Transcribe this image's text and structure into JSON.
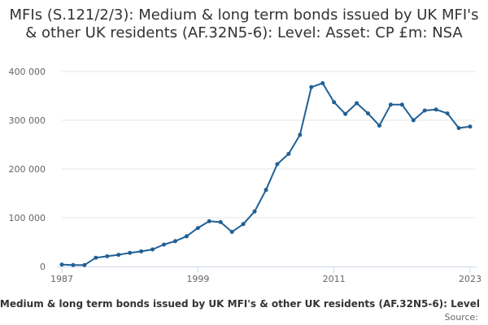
{
  "chart_data": {
    "type": "line",
    "title": "MFIs (S.121/2/3): Medium & long term bonds issued by UK MFI's & other UK residents (AF.32N5-6): Level: Asset: CP £m: NSA",
    "xlabel": "Medium & long term bonds issued by UK MFI's & other UK residents (AF.32N5-6): Level",
    "ylabel": "",
    "source": "Source:",
    "xlim": [
      1987,
      2023
    ],
    "ylim": [
      0,
      400000
    ],
    "x_ticks": [
      1987,
      1999,
      2011,
      2023
    ],
    "y_ticks": [
      0,
      100000,
      200000,
      300000,
      400000
    ],
    "y_tick_labels": [
      "0",
      "100 000",
      "200 000",
      "300 000",
      "400 000"
    ],
    "grid": true,
    "line_color": "#206095",
    "x": [
      1987,
      1988,
      1989,
      1990,
      1991,
      1992,
      1993,
      1994,
      1995,
      1996,
      1997,
      1998,
      1999,
      2000,
      2001,
      2002,
      2003,
      2004,
      2005,
      2006,
      2007,
      2008,
      2009,
      2010,
      2011,
      2012,
      2013,
      2014,
      2015,
      2016,
      2017,
      2018,
      2019,
      2020,
      2021,
      2022,
      2023
    ],
    "series": [
      {
        "values": [
          4000,
          3000,
          3000,
          18000,
          21000,
          24000,
          28000,
          31000,
          35000,
          45000,
          52000,
          62000,
          79000,
          93000,
          91000,
          71000,
          87000,
          113000,
          157000,
          210000,
          231000,
          270000,
          368000,
          376000,
          337000,
          313000,
          335000,
          314000,
          289000,
          332000,
          332000,
          300000,
          320000,
          322000,
          314000,
          284000,
          287000
        ]
      }
    ]
  }
}
